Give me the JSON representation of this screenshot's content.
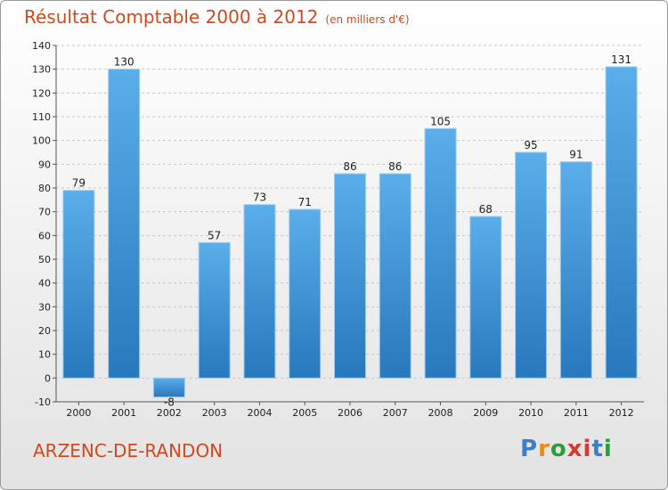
{
  "title": "Résultat Comptable 2000 à 2012",
  "subtitle": "(en milliers d'€)",
  "place": "ARZENC-DE-RANDON",
  "logo": {
    "letters": [
      "P",
      "r",
      "o",
      "x",
      "i",
      "t",
      "i"
    ],
    "colors": [
      "#3a7fc9",
      "#e58a1c",
      "#2e9c3a",
      "#d63b2f",
      "#d63b2f",
      "#3a7fc9",
      "#2e9c3a"
    ]
  },
  "colors": {
    "bar": "#3f94d8",
    "text": "#d04a1f"
  },
  "chart_data": {
    "type": "bar",
    "categories": [
      "2000",
      "2001",
      "2002",
      "2003",
      "2004",
      "2005",
      "2006",
      "2007",
      "2008",
      "2009",
      "2010",
      "2011",
      "2012"
    ],
    "values": [
      79,
      130,
      -8,
      57,
      73,
      71,
      86,
      86,
      105,
      68,
      95,
      91,
      131
    ],
    "ylim": [
      -10,
      140
    ],
    "yticks": [
      -10,
      0,
      10,
      20,
      30,
      40,
      50,
      60,
      70,
      80,
      90,
      100,
      110,
      120,
      130,
      140
    ],
    "grid": true
  }
}
